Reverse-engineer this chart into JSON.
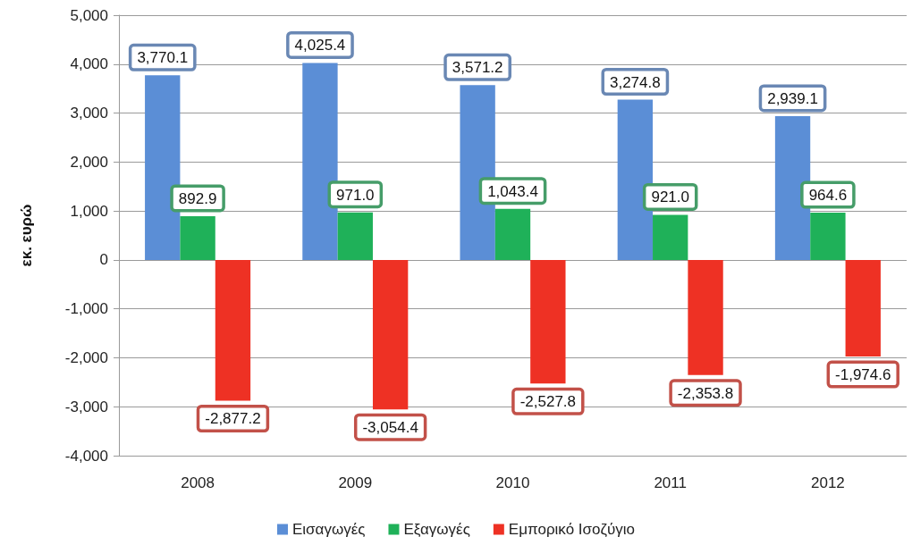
{
  "chart_data": {
    "type": "bar",
    "ylabel": "εκ. ευρώ",
    "categories": [
      "2008",
      "2009",
      "2010",
      "2011",
      "2012"
    ],
    "series": [
      {
        "name": "Εισαγωγές",
        "color": "#5b8ed6",
        "values": [
          3770.1,
          4025.4,
          3571.2,
          3274.8,
          2939.1
        ],
        "value_labels": [
          "3,770.1",
          "4,025.4",
          "3,571.2",
          "3,274.8",
          "2,939.1"
        ]
      },
      {
        "name": "Εξαγωγές",
        "color": "#1fb159",
        "values": [
          892.9,
          971.0,
          1043.4,
          921.0,
          964.6
        ],
        "value_labels": [
          "892.9",
          "971.0",
          "1,043.4",
          "921.0",
          "964.6"
        ]
      },
      {
        "name": "Εμπορικό Ισοζύγιο",
        "color": "#ee3124",
        "values": [
          -2877.2,
          -3054.4,
          -2527.8,
          -2353.8,
          -1974.6
        ],
        "value_labels": [
          "-2,877.2",
          "-3,054.4",
          "-2,527.8",
          "-2,353.8",
          "-1,974.6"
        ]
      }
    ],
    "ylim": [
      -4000,
      5000
    ],
    "yticks": [
      {
        "value": -4000,
        "label": "-4,000"
      },
      {
        "value": -3000,
        "label": "-3,000"
      },
      {
        "value": -2000,
        "label": "-2,000"
      },
      {
        "value": -1000,
        "label": "-1,000"
      },
      0,
      {
        "value": 1000,
        "label": "1,000"
      },
      {
        "value": 2000,
        "label": "2,000"
      },
      {
        "value": 3000,
        "label": "3,000"
      },
      {
        "value": 4000,
        "label": "4,000"
      },
      {
        "value": 5000,
        "label": "5,000"
      }
    ],
    "grid": "y",
    "legend": "bottom"
  }
}
